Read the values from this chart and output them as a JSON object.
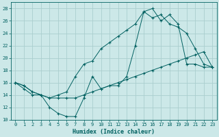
{
  "xlabel": "Humidex (Indice chaleur)",
  "bg_color": "#cce8e8",
  "grid_color": "#aacece",
  "line_color": "#006060",
  "line1_y": [
    16,
    15,
    14,
    14,
    12,
    11,
    10.5,
    10.5,
    13.5,
    17,
    15,
    15.5,
    15.5,
    17,
    22,
    27.5,
    28,
    26,
    27,
    25.5,
    19,
    19,
    18.5,
    18.5
  ],
  "line2_y": [
    16,
    15.5,
    14.5,
    14.0,
    13.5,
    13.5,
    13.5,
    13.5,
    14.0,
    14.5,
    15.0,
    15.5,
    16.0,
    16.5,
    17.0,
    17.5,
    18.0,
    18.5,
    19.0,
    19.5,
    20.0,
    20.5,
    21.0,
    18.5
  ],
  "line3_y": [
    16,
    15.5,
    14.5,
    14,
    13.5,
    14,
    14.5,
    17,
    19,
    19.5,
    21.5,
    22.5,
    23.5,
    24.5,
    25.5,
    27.5,
    26.5,
    27,
    25.5,
    25,
    24,
    21.5,
    19,
    18.5
  ],
  "ylim": [
    10,
    29
  ],
  "xlim": [
    -0.5,
    23.5
  ],
  "yticks": [
    10,
    12,
    14,
    16,
    18,
    20,
    22,
    24,
    26,
    28
  ],
  "xticks": [
    0,
    1,
    2,
    3,
    4,
    5,
    6,
    7,
    8,
    9,
    10,
    11,
    12,
    13,
    14,
    15,
    16,
    17,
    18,
    19,
    20,
    21,
    22,
    23
  ]
}
